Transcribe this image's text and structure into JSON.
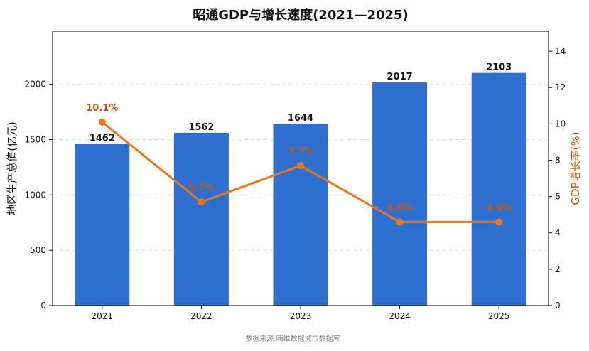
{
  "chart_data": {
    "type": "bar",
    "title": "昭通GDP与增长速度(2021—2025)",
    "categories": [
      "2021",
      "2022",
      "2023",
      "2024",
      "2025"
    ],
    "series": [
      {
        "name": "",
        "type": "bar",
        "axis": "left",
        "values": [
          1462,
          1562,
          1644,
          2017,
          2103
        ],
        "labels": [
          "1462",
          "1562",
          "1644",
          "2017",
          "2103"
        ]
      },
      {
        "name": "",
        "type": "line",
        "axis": "right",
        "values": [
          10.1,
          5.7,
          7.7,
          4.6,
          4.6
        ],
        "labels": [
          "10.1%",
          "5.7%",
          "7.7%",
          "4.6%",
          "4.6%"
        ]
      }
    ],
    "ylabel": "地区生产总值(亿元)",
    "y2label": "GDP增长率(%)",
    "ylim": [
      0,
      2480
    ],
    "y2lim": [
      0,
      15.1
    ],
    "yticks": [
      0,
      500,
      1000,
      1500,
      2000
    ],
    "y2ticks": [
      0,
      2,
      4,
      6,
      8,
      10,
      12,
      14
    ],
    "grid": "horizontal dashed",
    "colors": {
      "bar": "#2f6fcf",
      "line": "#e8761b",
      "rate_text": "#c0580f"
    },
    "source": "数据来源:嗨维数据城市数据库"
  }
}
